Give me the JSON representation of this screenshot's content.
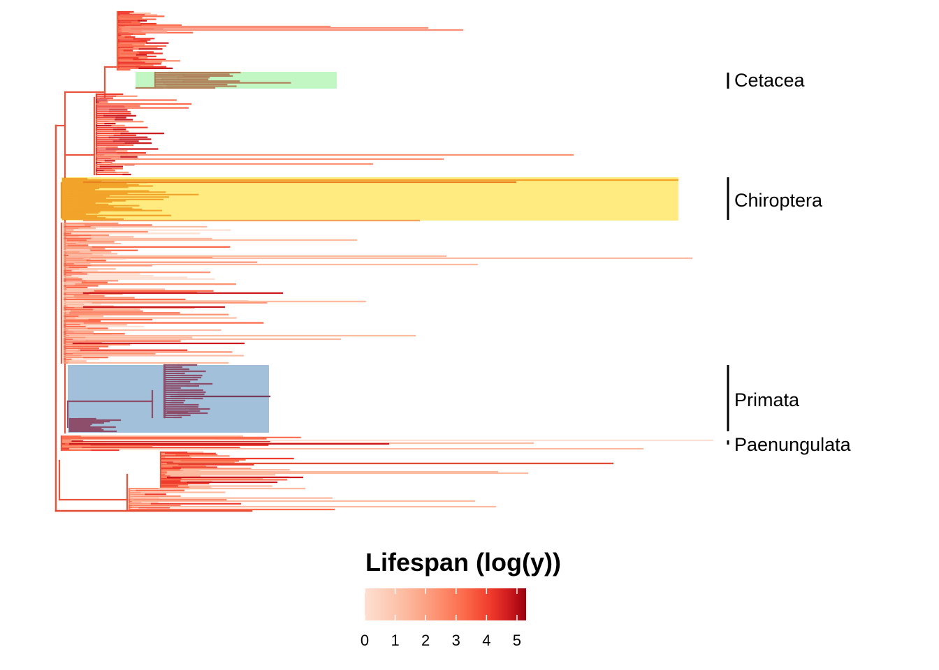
{
  "clades": [
    {
      "id": "cetacea",
      "label": "Cetacea",
      "highlight": "#90ee90"
    },
    {
      "id": "chiroptera",
      "label": "Chiroptera",
      "highlight": "#ffd700"
    },
    {
      "id": "primata",
      "label": "Primata",
      "highlight": "#4682b4"
    },
    {
      "id": "paenungulata",
      "label": "Paenungulata"
    }
  ],
  "legend": {
    "title": "Lifespan (log(y))",
    "ticks": [
      "0",
      "1",
      "2",
      "3",
      "4",
      "5"
    ],
    "range": [
      0,
      5.3
    ],
    "gradient": [
      "#fee0d2",
      "#fc9272",
      "#ef3b2c",
      "#cb181d",
      "#99000d"
    ]
  }
}
